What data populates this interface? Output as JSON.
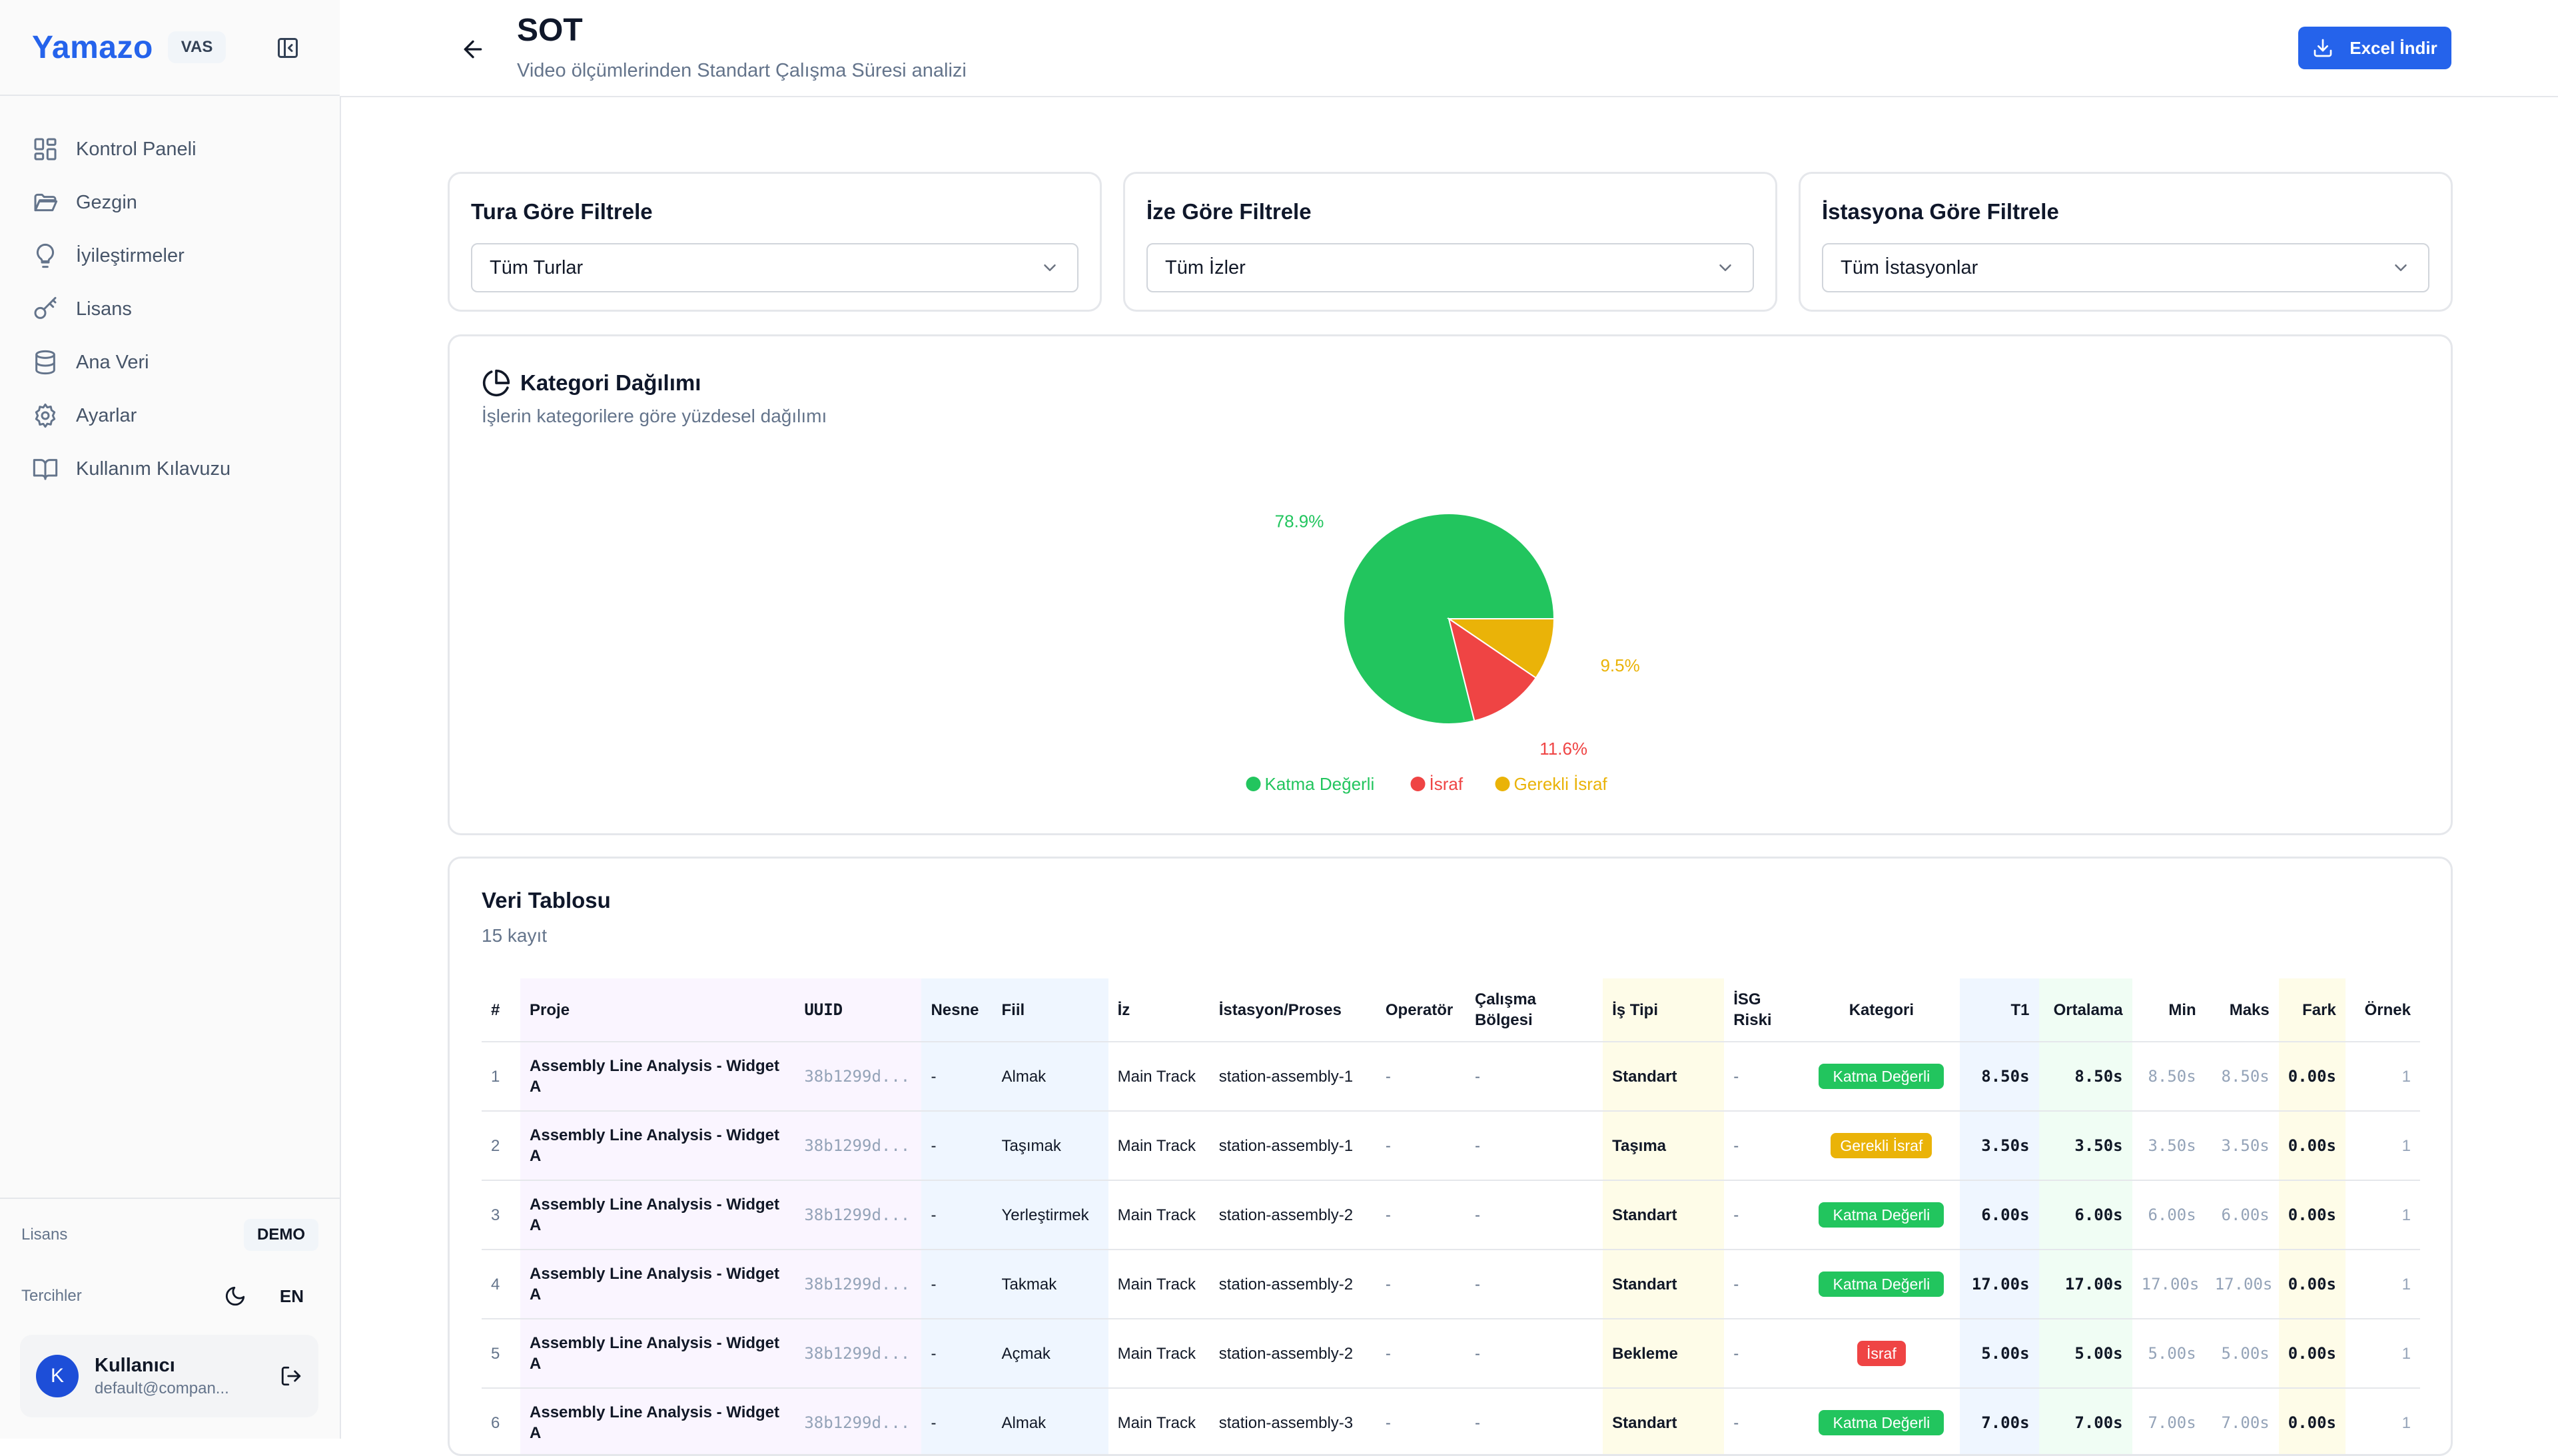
{
  "sidebar": {
    "brand": "Yamazo",
    "brand_tag": "VAS",
    "nav": [
      {
        "label": "Kontrol Paneli",
        "icon": "dashboard-icon"
      },
      {
        "label": "Gezgin",
        "icon": "folder-icon"
      },
      {
        "label": "İyileştirmeler",
        "icon": "lightbulb-icon"
      },
      {
        "label": "Lisans",
        "icon": "key-icon"
      },
      {
        "label": "Ana Veri",
        "icon": "database-icon"
      },
      {
        "label": "Ayarlar",
        "icon": "gear-icon"
      },
      {
        "label": "Kullanım Kılavuzu",
        "icon": "book-icon"
      }
    ],
    "license_label": "Lisans",
    "license_value": "DEMO",
    "prefs_label": "Tercihler",
    "lang": "EN",
    "user": {
      "initial": "K",
      "name": "Kullanıcı",
      "email": "default@compan..."
    }
  },
  "header": {
    "title": "SOT",
    "subtitle": "Video ölçümlerinden Standart Çalışma Süresi analizi",
    "export_label": "Excel İndir"
  },
  "filters": [
    {
      "title": "Tura Göre Filtrele",
      "value": "Tüm Turlar"
    },
    {
      "title": "İze Göre Filtrele",
      "value": "Tüm İzler"
    },
    {
      "title": "İstasyona Göre Filtrele",
      "value": "Tüm İstasyonlar"
    }
  ],
  "chart": {
    "title": "Kategori Dağılımı",
    "subtitle": "İşlerin kategorilere göre yüzdesel dağılımı"
  },
  "chart_data": {
    "type": "pie",
    "title": "Kategori Dağılımı",
    "slices": [
      {
        "label": "Katma Değerli",
        "value": 78.9,
        "display": "78.9%",
        "color": "#22c55e"
      },
      {
        "label": "İsraf",
        "value": 11.6,
        "display": "11.6%",
        "color": "#ef4444"
      },
      {
        "label": "Gerekli İsraf",
        "value": 9.5,
        "display": "9.5%",
        "color": "#eab308"
      }
    ],
    "legend_position": "bottom"
  },
  "table": {
    "title": "Veri Tablosu",
    "count": "15 kayıt",
    "headers": {
      "idx": "#",
      "proje": "Proje",
      "uuid": "UUID",
      "nesne": "Nesne",
      "fiil": "Fiil",
      "iz": "İz",
      "istasyon": "İstasyon/Proses",
      "operator": "Operatör",
      "bolge": "Çalışma Bölgesi",
      "tip": "İş Tipi",
      "isg": "İSG Riski",
      "kategori": "Kategori",
      "t1": "T1",
      "ortalama": "Ortalama",
      "min": "Min",
      "maks": "Maks",
      "fark": "Fark",
      "ornek": "Örnek"
    },
    "rows": [
      {
        "idx": "1",
        "proje": "Assembly Line Analysis - Widget A",
        "uuid": "38b1299d...",
        "nesne": "-",
        "fiil": "Almak",
        "iz": "Main Track",
        "istasyon": "station-assembly-1",
        "operator": "-",
        "bolge": "-",
        "tip": "Standart",
        "isg": "-",
        "kategori": "Katma Değerli",
        "t1": "8.50s",
        "ortalama": "8.50s",
        "min": "8.50s",
        "maks": "8.50s",
        "fark": "0.00s",
        "ornek": "1"
      },
      {
        "idx": "2",
        "proje": "Assembly Line Analysis - Widget A",
        "uuid": "38b1299d...",
        "nesne": "-",
        "fiil": "Taşımak",
        "iz": "Main Track",
        "istasyon": "station-assembly-1",
        "operator": "-",
        "bolge": "-",
        "tip": "Taşıma",
        "isg": "-",
        "kategori": "Gerekli İsraf",
        "t1": "3.50s",
        "ortalama": "3.50s",
        "min": "3.50s",
        "maks": "3.50s",
        "fark": "0.00s",
        "ornek": "1"
      },
      {
        "idx": "3",
        "proje": "Assembly Line Analysis - Widget A",
        "uuid": "38b1299d...",
        "nesne": "-",
        "fiil": "Yerleştirmek",
        "iz": "Main Track",
        "istasyon": "station-assembly-2",
        "operator": "-",
        "bolge": "-",
        "tip": "Standart",
        "isg": "-",
        "kategori": "Katma Değerli",
        "t1": "6.00s",
        "ortalama": "6.00s",
        "min": "6.00s",
        "maks": "6.00s",
        "fark": "0.00s",
        "ornek": "1"
      },
      {
        "idx": "4",
        "proje": "Assembly Line Analysis - Widget A",
        "uuid": "38b1299d...",
        "nesne": "-",
        "fiil": "Takmak",
        "iz": "Main Track",
        "istasyon": "station-assembly-2",
        "operator": "-",
        "bolge": "-",
        "tip": "Standart",
        "isg": "-",
        "kategori": "Katma Değerli",
        "t1": "17.00s",
        "ortalama": "17.00s",
        "min": "17.00s",
        "maks": "17.00s",
        "fark": "0.00s",
        "ornek": "1"
      },
      {
        "idx": "5",
        "proje": "Assembly Line Analysis - Widget A",
        "uuid": "38b1299d...",
        "nesne": "-",
        "fiil": "Açmak",
        "iz": "Main Track",
        "istasyon": "station-assembly-2",
        "operator": "-",
        "bolge": "-",
        "tip": "Bekleme",
        "isg": "-",
        "kategori": "İsraf",
        "t1": "5.00s",
        "ortalama": "5.00s",
        "min": "5.00s",
        "maks": "5.00s",
        "fark": "0.00s",
        "ornek": "1"
      },
      {
        "idx": "6",
        "proje": "Assembly Line Analysis - Widget A",
        "uuid": "38b1299d...",
        "nesne": "-",
        "fiil": "Almak",
        "iz": "Main Track",
        "istasyon": "station-assembly-3",
        "operator": "-",
        "bolge": "-",
        "tip": "Standart",
        "isg": "-",
        "kategori": "Katma Değerli",
        "t1": "7.00s",
        "ortalama": "7.00s",
        "min": "7.00s",
        "maks": "7.00s",
        "fark": "0.00s",
        "ornek": "1"
      }
    ]
  },
  "colors": {
    "accent": "#2563eb",
    "katma_degerli": "#22c55e",
    "israf": "#ef4444",
    "gerekli_israf": "#eab308"
  }
}
